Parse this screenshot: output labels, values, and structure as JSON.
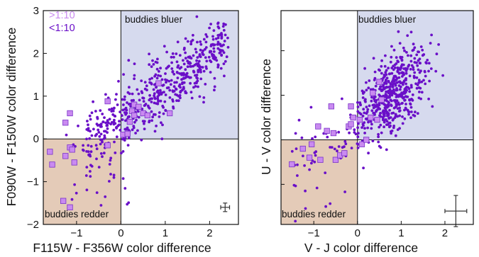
{
  "colors": {
    "point": "#6a0fc8",
    "square_fill": "#c98af0",
    "square_edge": "#7a32c8",
    "blue_region": "#d6daee",
    "red_region": "#e4cbb8",
    "legend_gt": "#c98af0",
    "legend_lt": "#6a0fc8"
  },
  "chart_data": [
    {
      "type": "scatter",
      "xlabel": "F115W - F356W color difference",
      "ylabel": "F090W - F150W color difference",
      "xlim": [
        -1.75,
        2.65
      ],
      "ylim": [
        -2,
        3
      ],
      "xticks": [
        -1,
        0,
        1,
        2
      ],
      "yticks": [
        -2,
        -1,
        0,
        1,
        2,
        3
      ],
      "xtick_labels": [
        "−1",
        "0",
        "1",
        "2"
      ],
      "ytick_labels": [
        "−2",
        "−1",
        "0",
        "1",
        "2",
        "3"
      ],
      "regions": [
        {
          "label": "buddies bluer",
          "x": [
            0,
            2.65
          ],
          "y": [
            0,
            3
          ],
          "color": "blue"
        },
        {
          "label": "buddies redder",
          "x": [
            -1.75,
            0
          ],
          "y": [
            -2,
            0
          ],
          "color": "red"
        }
      ],
      "legend": {
        "placement": "top-left",
        "entries": [
          ">1:10",
          "<1:10"
        ]
      },
      "error_bar": {
        "x": 2.35,
        "y": -1.6,
        "xerr": 0.1,
        "yerr": 0.1
      },
      "trend": {
        "slope": 0.75,
        "intercept": 0.5,
        "scatter": 0.38,
        "x_range": [
          -0.8,
          2.4
        ],
        "n": 540
      },
      "series": [
        {
          "name": ">1:10",
          "marker": "square",
          "points": [
            [
              -1.6,
              -0.3
            ],
            [
              -1.55,
              -0.6
            ],
            [
              -1.25,
              -0.4
            ],
            [
              -1.15,
              -0.2
            ],
            [
              -1.1,
              -0.25
            ],
            [
              -1.05,
              -0.55
            ],
            [
              -1.15,
              -1.6
            ],
            [
              -1.3,
              -1.45
            ],
            [
              -1.25,
              0.38
            ],
            [
              -1.15,
              0.6
            ],
            [
              -0.3,
              0.88
            ],
            [
              -0.3,
              -0.15
            ],
            [
              0.05,
              0.1
            ],
            [
              0.15,
              0.12
            ],
            [
              0.2,
              0.4
            ],
            [
              0.25,
              0.65
            ],
            [
              0.3,
              0.8
            ],
            [
              0.4,
              0.75
            ],
            [
              0.5,
              0.6
            ],
            [
              0.6,
              0.55
            ],
            [
              0.85,
              1.3
            ],
            [
              1.1,
              0.6
            ],
            [
              0.3,
              0.55
            ]
          ]
        },
        {
          "name": "<1:10",
          "marker": "dot",
          "points": []
        }
      ]
    },
    {
      "type": "scatter",
      "xlabel": "V - J color difference",
      "ylabel": "U - V color difference",
      "xlim": [
        -1.75,
        2.65
      ],
      "ylim": [
        -1.9,
        2.9
      ],
      "xticks": [
        -1,
        0,
        1,
        2
      ],
      "xtick_labels": [
        "−1",
        "0",
        "1",
        "2"
      ],
      "yticks": [],
      "ytick_labels": [],
      "regions": [
        {
          "label": "buddies bluer",
          "x": [
            0,
            2.65
          ],
          "y": [
            0,
            2.9
          ],
          "color": "blue"
        },
        {
          "label": "buddies redder",
          "x": [
            -1.75,
            0
          ],
          "y": [
            -1.9,
            0
          ],
          "color": "red"
        }
      ],
      "error_bar": {
        "x": 2.25,
        "y": -1.6,
        "xerr": 0.25,
        "yerr": 0.35
      },
      "trend": {
        "center": [
          0.8,
          1.05
        ],
        "sx": 0.38,
        "sy": 0.42,
        "n": 500,
        "tail_n": 70
      },
      "series": [
        {
          "name": ">1:10",
          "marker": "square",
          "points": [
            [
              -1.5,
              -0.55
            ],
            [
              -1.25,
              -0.2
            ],
            [
              -1.1,
              -0.4
            ],
            [
              -1.05,
              -0.1
            ],
            [
              -0.9,
              0.3
            ],
            [
              -0.85,
              -0.45
            ],
            [
              -0.7,
              0.2
            ],
            [
              -0.6,
              0.75
            ],
            [
              -0.55,
              0.15
            ],
            [
              -0.5,
              -0.45
            ],
            [
              -0.4,
              -0.35
            ],
            [
              -0.3,
              -0.3
            ],
            [
              -0.2,
              0.3
            ],
            [
              -0.15,
              0.75
            ],
            [
              -0.1,
              0.5
            ],
            [
              0.05,
              0.45
            ],
            [
              0.1,
              -0.1
            ],
            [
              0.2,
              0.0
            ],
            [
              0.3,
              0.5
            ],
            [
              0.35,
              1.05
            ],
            [
              0.5,
              1.3
            ],
            [
              0.55,
              0.9
            ],
            [
              -0.15,
              0.35
            ],
            [
              0.45,
              0.45
            ]
          ]
        },
        {
          "name": "<1:10",
          "marker": "dot",
          "points": []
        }
      ]
    }
  ]
}
